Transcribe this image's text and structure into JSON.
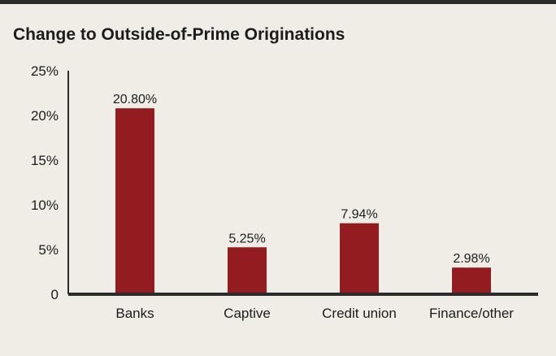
{
  "chart_data": {
    "type": "bar",
    "title": "Change to Outside-of-Prime Originations",
    "xlabel": "",
    "ylabel": "",
    "categories": [
      "Banks",
      "Captive",
      "Credit union",
      "Finance/other"
    ],
    "values": [
      20.8,
      5.25,
      7.94,
      2.98
    ],
    "value_labels": [
      "20.80%",
      "5.25%",
      "7.94%",
      "2.98%"
    ],
    "ylim": [
      0,
      25
    ],
    "y_ticks": [
      0,
      5,
      10,
      15,
      20,
      25
    ],
    "y_tick_labels": [
      "0",
      "5%",
      "10%",
      "15%",
      "20%",
      "25%"
    ],
    "grid": false,
    "legend": "none",
    "colors": {
      "bar": "#931c20",
      "axis": "#2b2b2b",
      "background": "#f0ede7",
      "frame_top": "#2b2b2b"
    }
  }
}
